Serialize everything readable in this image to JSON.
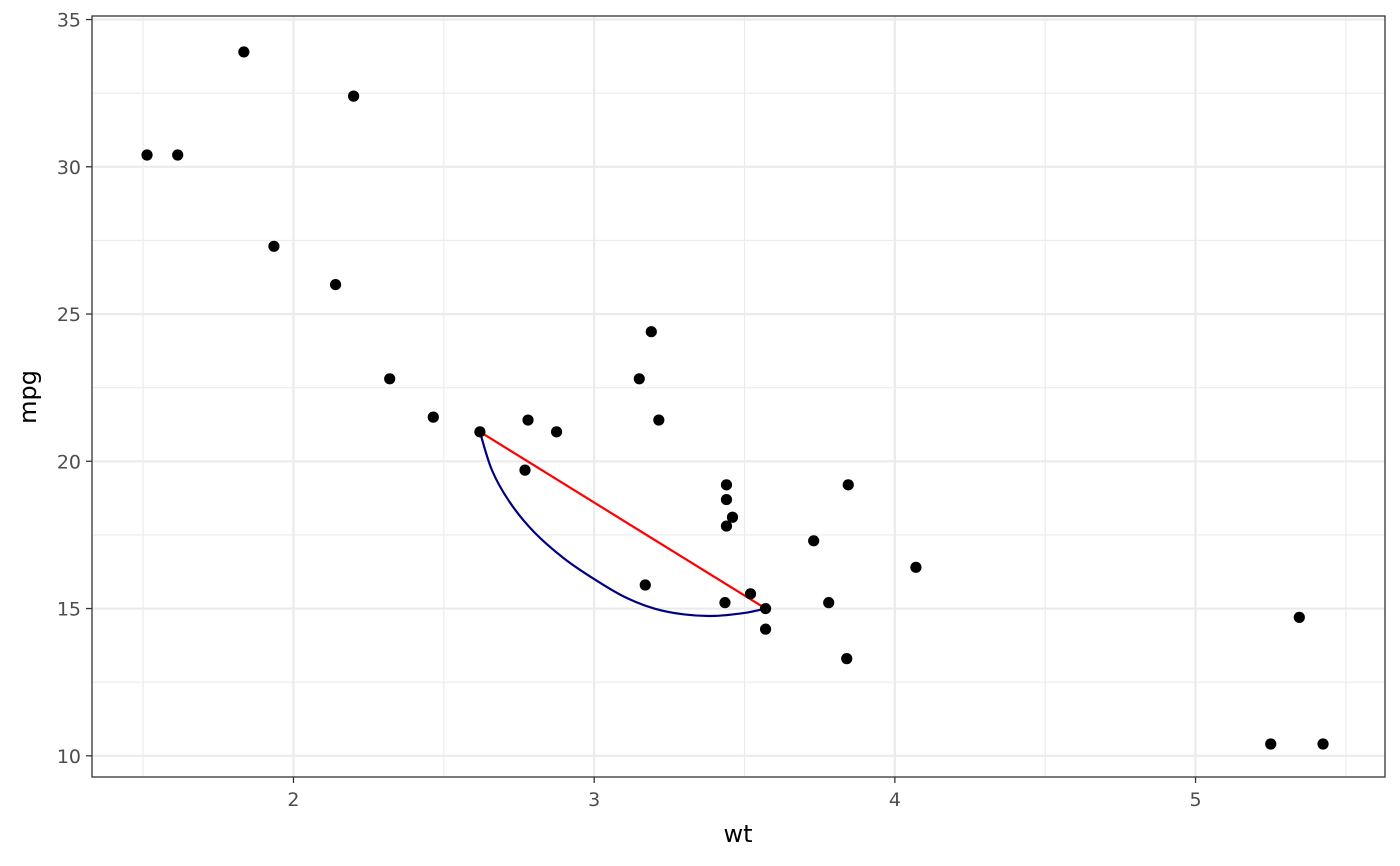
{
  "chart_data": {
    "type": "scatter",
    "title": "",
    "xlabel": "wt",
    "ylabel": "mpg",
    "xlim": [
      1.33,
      5.63
    ],
    "ylim": [
      9.28,
      35.12
    ],
    "x_ticks": [
      2,
      3,
      4,
      5
    ],
    "x_minor_ticks": [
      1.5,
      2.5,
      3.5,
      4.5,
      5.5
    ],
    "y_ticks": [
      10,
      15,
      20,
      25,
      30,
      35
    ],
    "y_minor_ticks": [
      12.5,
      17.5,
      22.5,
      27.5,
      32.5
    ],
    "grid": true,
    "points": [
      {
        "x": 2.62,
        "y": 21.0
      },
      {
        "x": 2.875,
        "y": 21.0
      },
      {
        "x": 2.32,
        "y": 22.8
      },
      {
        "x": 3.215,
        "y": 21.4
      },
      {
        "x": 3.44,
        "y": 18.7
      },
      {
        "x": 3.46,
        "y": 18.1
      },
      {
        "x": 3.57,
        "y": 14.3
      },
      {
        "x": 3.19,
        "y": 24.4
      },
      {
        "x": 3.15,
        "y": 22.8
      },
      {
        "x": 3.44,
        "y": 19.2
      },
      {
        "x": 3.44,
        "y": 17.8
      },
      {
        "x": 4.07,
        "y": 16.4
      },
      {
        "x": 3.73,
        "y": 17.3
      },
      {
        "x": 3.78,
        "y": 15.2
      },
      {
        "x": 5.25,
        "y": 10.4
      },
      {
        "x": 5.424,
        "y": 10.4
      },
      {
        "x": 5.345,
        "y": 14.7
      },
      {
        "x": 2.2,
        "y": 32.4
      },
      {
        "x": 1.615,
        "y": 30.4
      },
      {
        "x": 1.835,
        "y": 33.9
      },
      {
        "x": 2.465,
        "y": 21.5
      },
      {
        "x": 3.52,
        "y": 15.5
      },
      {
        "x": 3.435,
        "y": 15.2
      },
      {
        "x": 3.84,
        "y": 13.3
      },
      {
        "x": 3.845,
        "y": 19.2
      },
      {
        "x": 1.935,
        "y": 27.3
      },
      {
        "x": 2.14,
        "y": 26.0
      },
      {
        "x": 1.513,
        "y": 30.4
      },
      {
        "x": 3.17,
        "y": 15.8
      },
      {
        "x": 2.77,
        "y": 19.7
      },
      {
        "x": 3.57,
        "y": 15.0
      },
      {
        "x": 2.78,
        "y": 21.4
      }
    ],
    "segment": {
      "from": [
        2.62,
        21.0
      ],
      "to": [
        3.57,
        15.0
      ],
      "color": "#ff0000"
    },
    "curve": {
      "color": "#000080",
      "points": [
        [
          2.62,
          21.0
        ],
        [
          2.66,
          19.7
        ],
        [
          2.72,
          18.6
        ],
        [
          2.8,
          17.6
        ],
        [
          2.9,
          16.7
        ],
        [
          3.0,
          16.0
        ],
        [
          3.1,
          15.4
        ],
        [
          3.2,
          15.0
        ],
        [
          3.3,
          14.8
        ],
        [
          3.4,
          14.75
        ],
        [
          3.5,
          14.85
        ],
        [
          3.57,
          15.0
        ]
      ]
    }
  }
}
